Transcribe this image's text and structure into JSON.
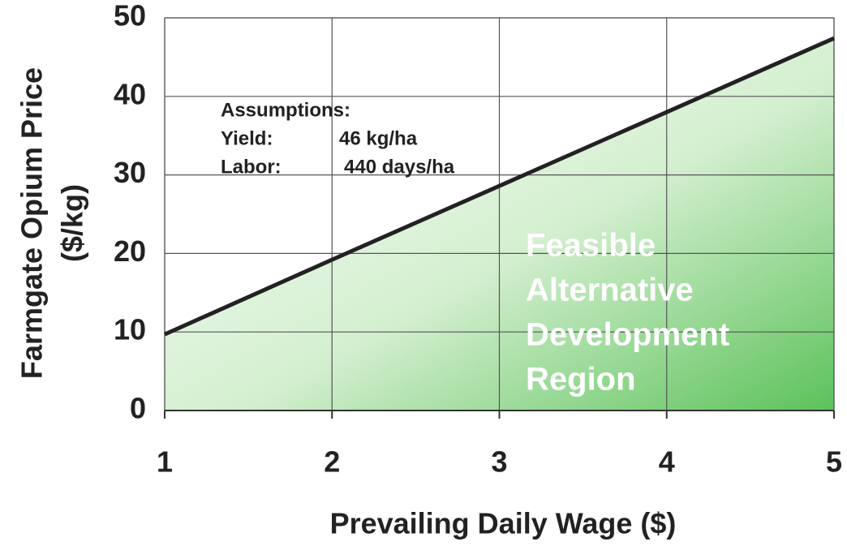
{
  "chart_data": {
    "type": "line",
    "xlabel": "Prevailing Daily Wage ($)",
    "ylabel": [
      "Farmgate Opium Price",
      "($/kg)"
    ],
    "x": [
      1,
      2,
      3,
      4,
      5
    ],
    "values": [
      9.7,
      19.2,
      28.6,
      38.0,
      47.4
    ],
    "color": "#222222",
    "fill": true,
    "xlim": [
      1,
      5
    ],
    "ylim": [
      0,
      50
    ],
    "xticks": [
      1,
      2,
      3,
      4,
      5
    ],
    "yticks": [
      0,
      10,
      20,
      30,
      40,
      50
    ],
    "grid": true,
    "annotations": {
      "assumptions": "Assumptions:",
      "yield_label": "Yield:",
      "yield_value": "46 kg/ha",
      "labor_label": "Labor:",
      "labor_value": "440 days/ha",
      "region": [
        "Feasible",
        "Alternative",
        "Development",
        "Region"
      ]
    }
  }
}
